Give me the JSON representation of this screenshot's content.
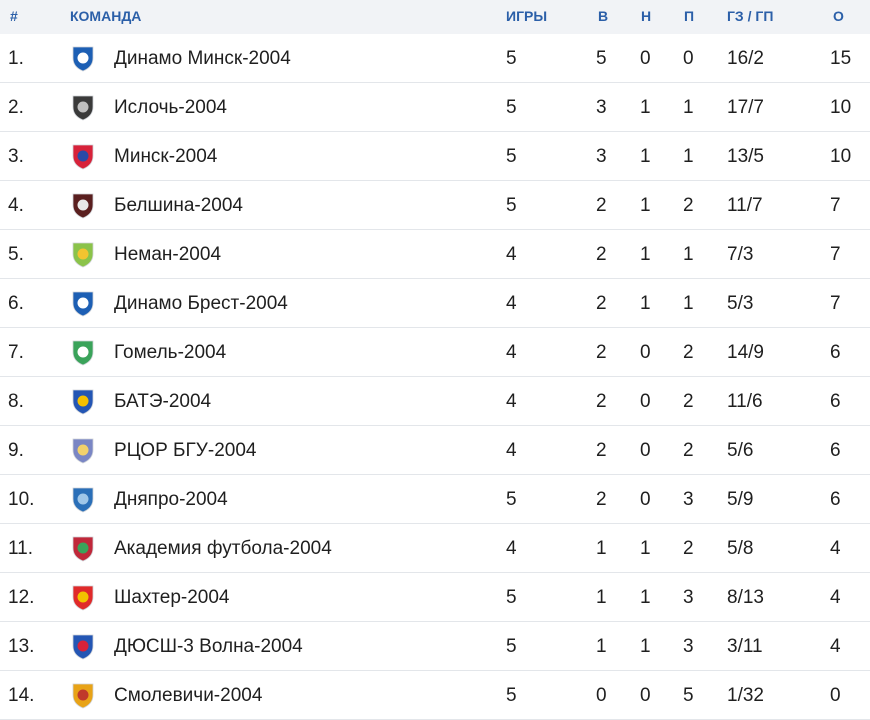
{
  "headers": {
    "num": "#",
    "team": "КОМАНДА",
    "games": "ИГРЫ",
    "w": "В",
    "d": "Н",
    "l": "П",
    "goals": "ГЗ / ГП",
    "pts": "О"
  },
  "rows": [
    {
      "num": "1.",
      "team": "Динамо Минск-2004",
      "games": "5",
      "w": "5",
      "d": "0",
      "l": "0",
      "goals": "16/2",
      "pts": "15",
      "logo": "dinamo-minsk-logo-icon",
      "c1": "#1d5fb4",
      "c2": "#ffffff"
    },
    {
      "num": "2.",
      "team": "Ислочь-2004",
      "games": "5",
      "w": "3",
      "d": "1",
      "l": "1",
      "goals": "17/7",
      "pts": "10",
      "logo": "isloch-logo-icon",
      "c1": "#3a3a3a",
      "c2": "#bfbfbf"
    },
    {
      "num": "3.",
      "team": "Минск-2004",
      "games": "5",
      "w": "3",
      "d": "1",
      "l": "1",
      "goals": "13/5",
      "pts": "10",
      "logo": "minsk-logo-icon",
      "c1": "#d7223a",
      "c2": "#2a4aa8"
    },
    {
      "num": "4.",
      "team": "Белшина-2004",
      "games": "5",
      "w": "2",
      "d": "1",
      "l": "2",
      "goals": "11/7",
      "pts": "7",
      "logo": "belshina-logo-icon",
      "c1": "#5a1f1f",
      "c2": "#e8e8e8"
    },
    {
      "num": "5.",
      "team": "Неман-2004",
      "games": "4",
      "w": "2",
      "d": "1",
      "l": "1",
      "goals": "7/3",
      "pts": "7",
      "logo": "neman-logo-icon",
      "c1": "#8bc34a",
      "c2": "#f4c430"
    },
    {
      "num": "6.",
      "team": "Динамо Брест-2004",
      "games": "4",
      "w": "2",
      "d": "1",
      "l": "1",
      "goals": "5/3",
      "pts": "7",
      "logo": "dinamo-brest-logo-icon",
      "c1": "#1d5fb4",
      "c2": "#ffffff"
    },
    {
      "num": "7.",
      "team": "Гомель-2004",
      "games": "4",
      "w": "2",
      "d": "0",
      "l": "2",
      "goals": "14/9",
      "pts": "6",
      "logo": "gomel-logo-icon",
      "c1": "#3aa35a",
      "c2": "#ffffff"
    },
    {
      "num": "8.",
      "team": "БАТЭ-2004",
      "games": "4",
      "w": "2",
      "d": "0",
      "l": "2",
      "goals": "11/6",
      "pts": "6",
      "logo": "bate-logo-icon",
      "c1": "#2456b4",
      "c2": "#f5c000"
    },
    {
      "num": "9.",
      "team": "РЦОР БГУ-2004",
      "games": "4",
      "w": "2",
      "d": "0",
      "l": "2",
      "goals": "5/6",
      "pts": "6",
      "logo": "rcor-bgu-logo-icon",
      "c1": "#7a86c4",
      "c2": "#f2d16b"
    },
    {
      "num": "10.",
      "team": "Дняпро-2004",
      "games": "5",
      "w": "2",
      "d": "0",
      "l": "3",
      "goals": "5/9",
      "pts": "6",
      "logo": "dnyapro-logo-icon",
      "c1": "#2a6fb8",
      "c2": "#9fc6e8"
    },
    {
      "num": "11.",
      "team": "Академия футбола-2004",
      "games": "4",
      "w": "1",
      "d": "1",
      "l": "2",
      "goals": "5/8",
      "pts": "4",
      "logo": "academy-logo-icon",
      "c1": "#c0283a",
      "c2": "#3aa35a"
    },
    {
      "num": "12.",
      "team": "Шахтер-2004",
      "games": "5",
      "w": "1",
      "d": "1",
      "l": "3",
      "goals": "8/13",
      "pts": "4",
      "logo": "shakhter-logo-icon",
      "c1": "#e02a2a",
      "c2": "#f2c300"
    },
    {
      "num": "13.",
      "team": "ДЮСШ-3 Волна-2004",
      "games": "5",
      "w": "1",
      "d": "1",
      "l": "3",
      "goals": "3/11",
      "pts": "4",
      "logo": "volna-logo-icon",
      "c1": "#2456b4",
      "c2": "#d7223a"
    },
    {
      "num": "14.",
      "team": "Смолевичи-2004",
      "games": "5",
      "w": "0",
      "d": "0",
      "l": "5",
      "goals": "1/32",
      "pts": "0",
      "logo": "smolevichi-logo-icon",
      "c1": "#e8a317",
      "c2": "#c0392b"
    }
  ]
}
